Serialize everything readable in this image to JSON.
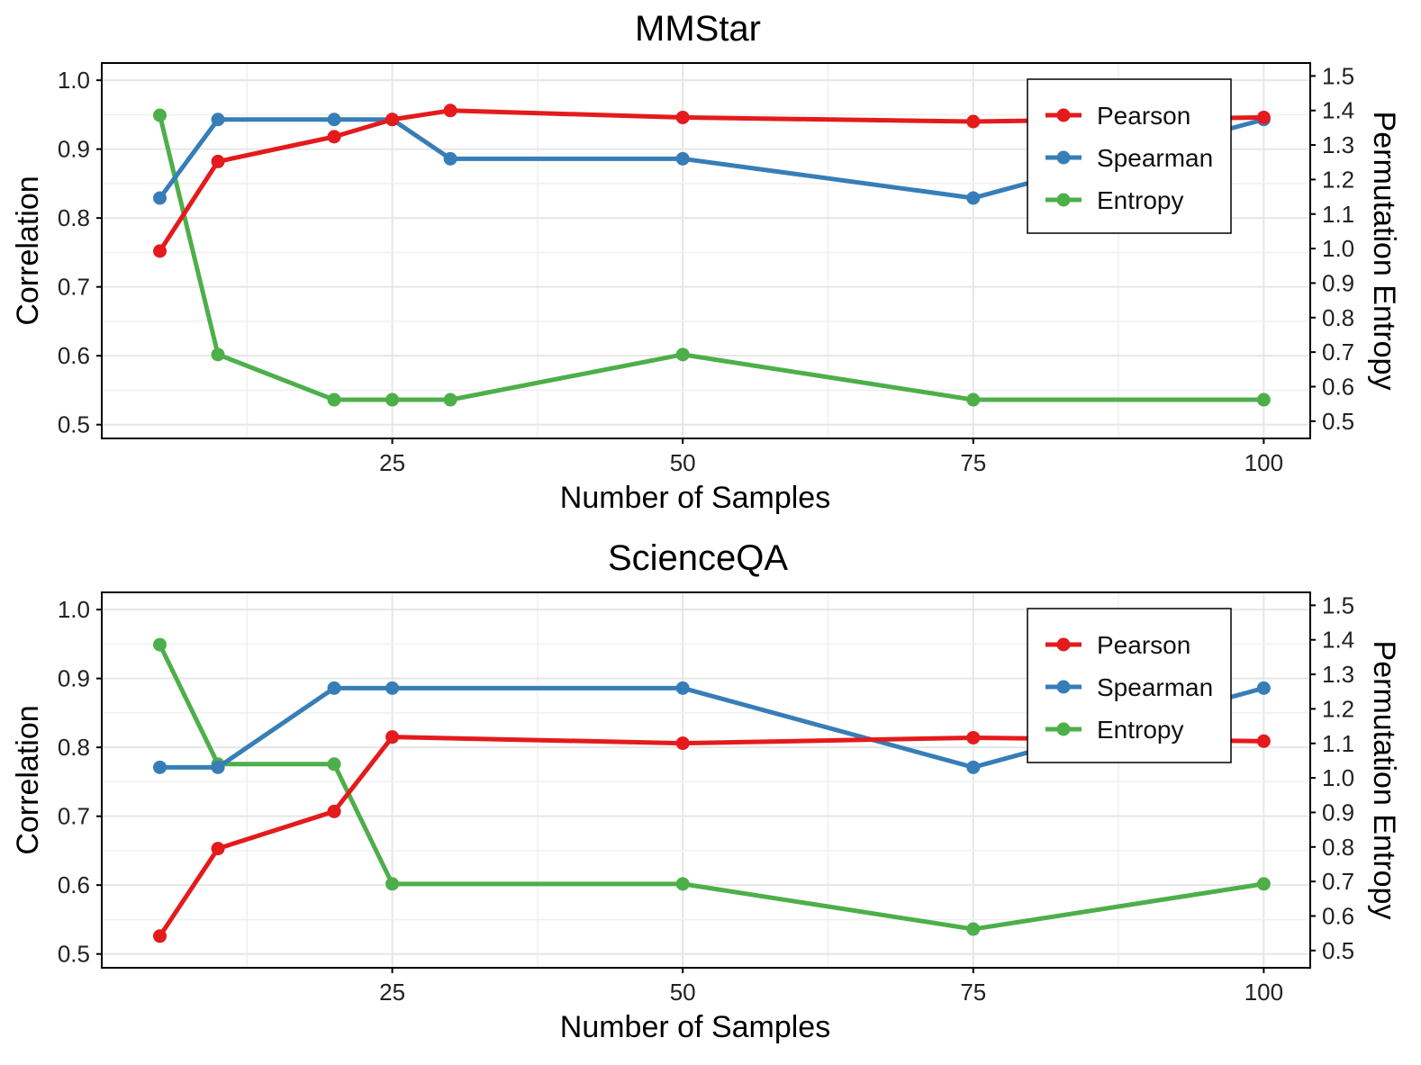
{
  "chart_data": [
    {
      "type": "line",
      "title": "MMStar",
      "xlabel": "Number of Samples",
      "ylabel": "Correlation",
      "y2label": "Permutation Entropy",
      "xlim": [
        0,
        104
      ],
      "ylim": [
        0.48,
        1.025
      ],
      "y2lim": [
        0.45,
        1.5375
      ],
      "xticks": [
        25,
        50,
        75,
        100
      ],
      "yticks": [
        0.5,
        0.6,
        0.7,
        0.8,
        0.9,
        1.0
      ],
      "y2ticks": [
        0.5,
        0.6,
        0.7,
        0.8,
        0.9,
        1.0,
        1.1,
        1.2,
        1.3,
        1.4,
        1.5
      ],
      "grid": true,
      "legend": "top-right",
      "x": [
        5,
        10,
        20,
        25,
        30,
        50,
        75,
        100
      ],
      "series": [
        {
          "name": "Pearson",
          "axis": "left",
          "color": "#e41a1c",
          "values": [
            0.752,
            0.882,
            0.918,
            0.943,
            0.956,
            0.946,
            0.94,
            0.946
          ]
        },
        {
          "name": "Spearman",
          "axis": "left",
          "color": "#377eb8",
          "values": [
            0.829,
            0.943,
            0.943,
            0.943,
            0.886,
            0.886,
            0.829,
            0.943
          ]
        },
        {
          "name": "Entropy",
          "axis": "right",
          "color": "#4daf4a",
          "values": [
            1.386,
            0.693,
            0.562,
            0.562,
            0.562,
            0.693,
            0.562,
            0.562
          ]
        }
      ]
    },
    {
      "type": "line",
      "title": "ScienceQA",
      "xlabel": "Number of Samples",
      "ylabel": "Correlation",
      "y2label": "Permutation Entropy",
      "xlim": [
        0,
        104
      ],
      "ylim": [
        0.48,
        1.025
      ],
      "y2lim": [
        0.45,
        1.5375
      ],
      "xticks": [
        25,
        50,
        75,
        100
      ],
      "yticks": [
        0.5,
        0.6,
        0.7,
        0.8,
        0.9,
        1.0
      ],
      "y2ticks": [
        0.5,
        0.6,
        0.7,
        0.8,
        0.9,
        1.0,
        1.1,
        1.2,
        1.3,
        1.4,
        1.5
      ],
      "grid": true,
      "legend": "top-right",
      "x": [
        5,
        10,
        20,
        25,
        50,
        75,
        100
      ],
      "series": [
        {
          "name": "Pearson",
          "axis": "left",
          "color": "#e41a1c",
          "values": [
            0.526,
            0.653,
            0.707,
            0.815,
            0.806,
            0.814,
            0.809
          ]
        },
        {
          "name": "Spearman",
          "axis": "left",
          "color": "#377eb8",
          "values": [
            0.771,
            0.771,
            0.886,
            0.886,
            0.886,
            0.771,
            0.886
          ]
        },
        {
          "name": "Entropy",
          "axis": "right",
          "color": "#4daf4a",
          "values": [
            1.386,
            1.04,
            1.04,
            0.693,
            0.693,
            0.562,
            0.693
          ]
        }
      ]
    }
  ]
}
